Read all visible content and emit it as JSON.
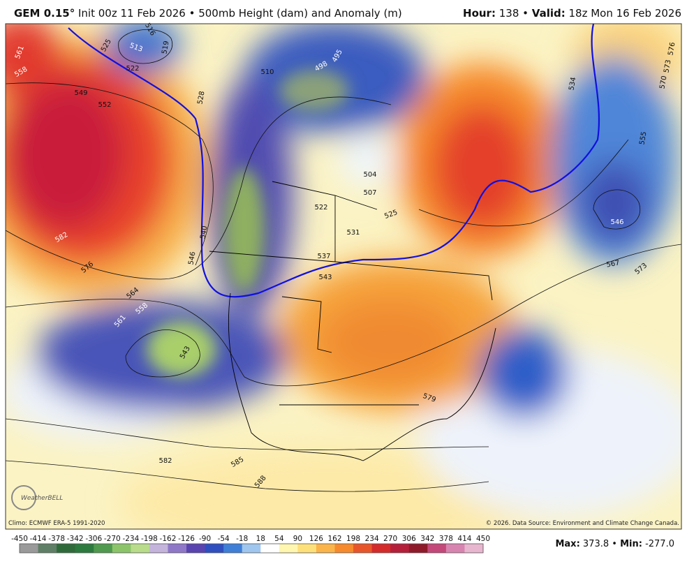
{
  "header": {
    "model": "GEM 0.15°",
    "info": "Init 00z 11 Feb 2026 • 500mb Height (dam) and Anomaly (m)",
    "hour_label": "Hour:",
    "hour": "138",
    "separator": "•",
    "valid_label": "Valid:",
    "valid": "18z Mon 16 Feb 2026"
  },
  "map": {
    "contour_labels": [
      "561",
      "558",
      "549",
      "552",
      "525",
      "516",
      "513",
      "519",
      "522",
      "528",
      "510",
      "498",
      "495",
      "504",
      "507",
      "522",
      "531",
      "525",
      "537",
      "543",
      "540",
      "546",
      "564",
      "558",
      "561",
      "543",
      "582",
      "576",
      "534",
      "555",
      "546",
      "567",
      "573",
      "576",
      "573",
      "570",
      "579",
      "582",
      "585",
      "588"
    ]
  },
  "footer": {
    "climo": "Climo: ECMWF ERA-5 1991-2020",
    "copyright": "© 2026. Data Source: Environment and Climate Change Canada.",
    "logo": "WeatherBELL"
  },
  "legend": {
    "ticks": [
      -450,
      -414,
      -378,
      -342,
      -306,
      -270,
      -234,
      -198,
      -162,
      -126,
      -90,
      -54,
      -18,
      18,
      54,
      90,
      126,
      162,
      198,
      234,
      270,
      306,
      342,
      378,
      414,
      450
    ],
    "colors": [
      "#9a9a9a",
      "#5f7f66",
      "#2f6b3a",
      "#2c7a3e",
      "#4f9a4f",
      "#8cc46a",
      "#b8dc8a",
      "#c4b4dc",
      "#8f78c8",
      "#5a44b0",
      "#2f4fc0",
      "#3f7fd8",
      "#9fc6ee",
      "#ffffff",
      "#fff6b0",
      "#fde07a",
      "#fbb44a",
      "#f68a2c",
      "#e8552a",
      "#d42a2a",
      "#b51f3a",
      "#8f1a2a",
      "#c4487a",
      "#d884b0",
      "#e8b6cf"
    ]
  },
  "stats": {
    "max_label": "Max:",
    "max": "373.8",
    "separator": "•",
    "min_label": "Min:",
    "min": "-277.0"
  }
}
